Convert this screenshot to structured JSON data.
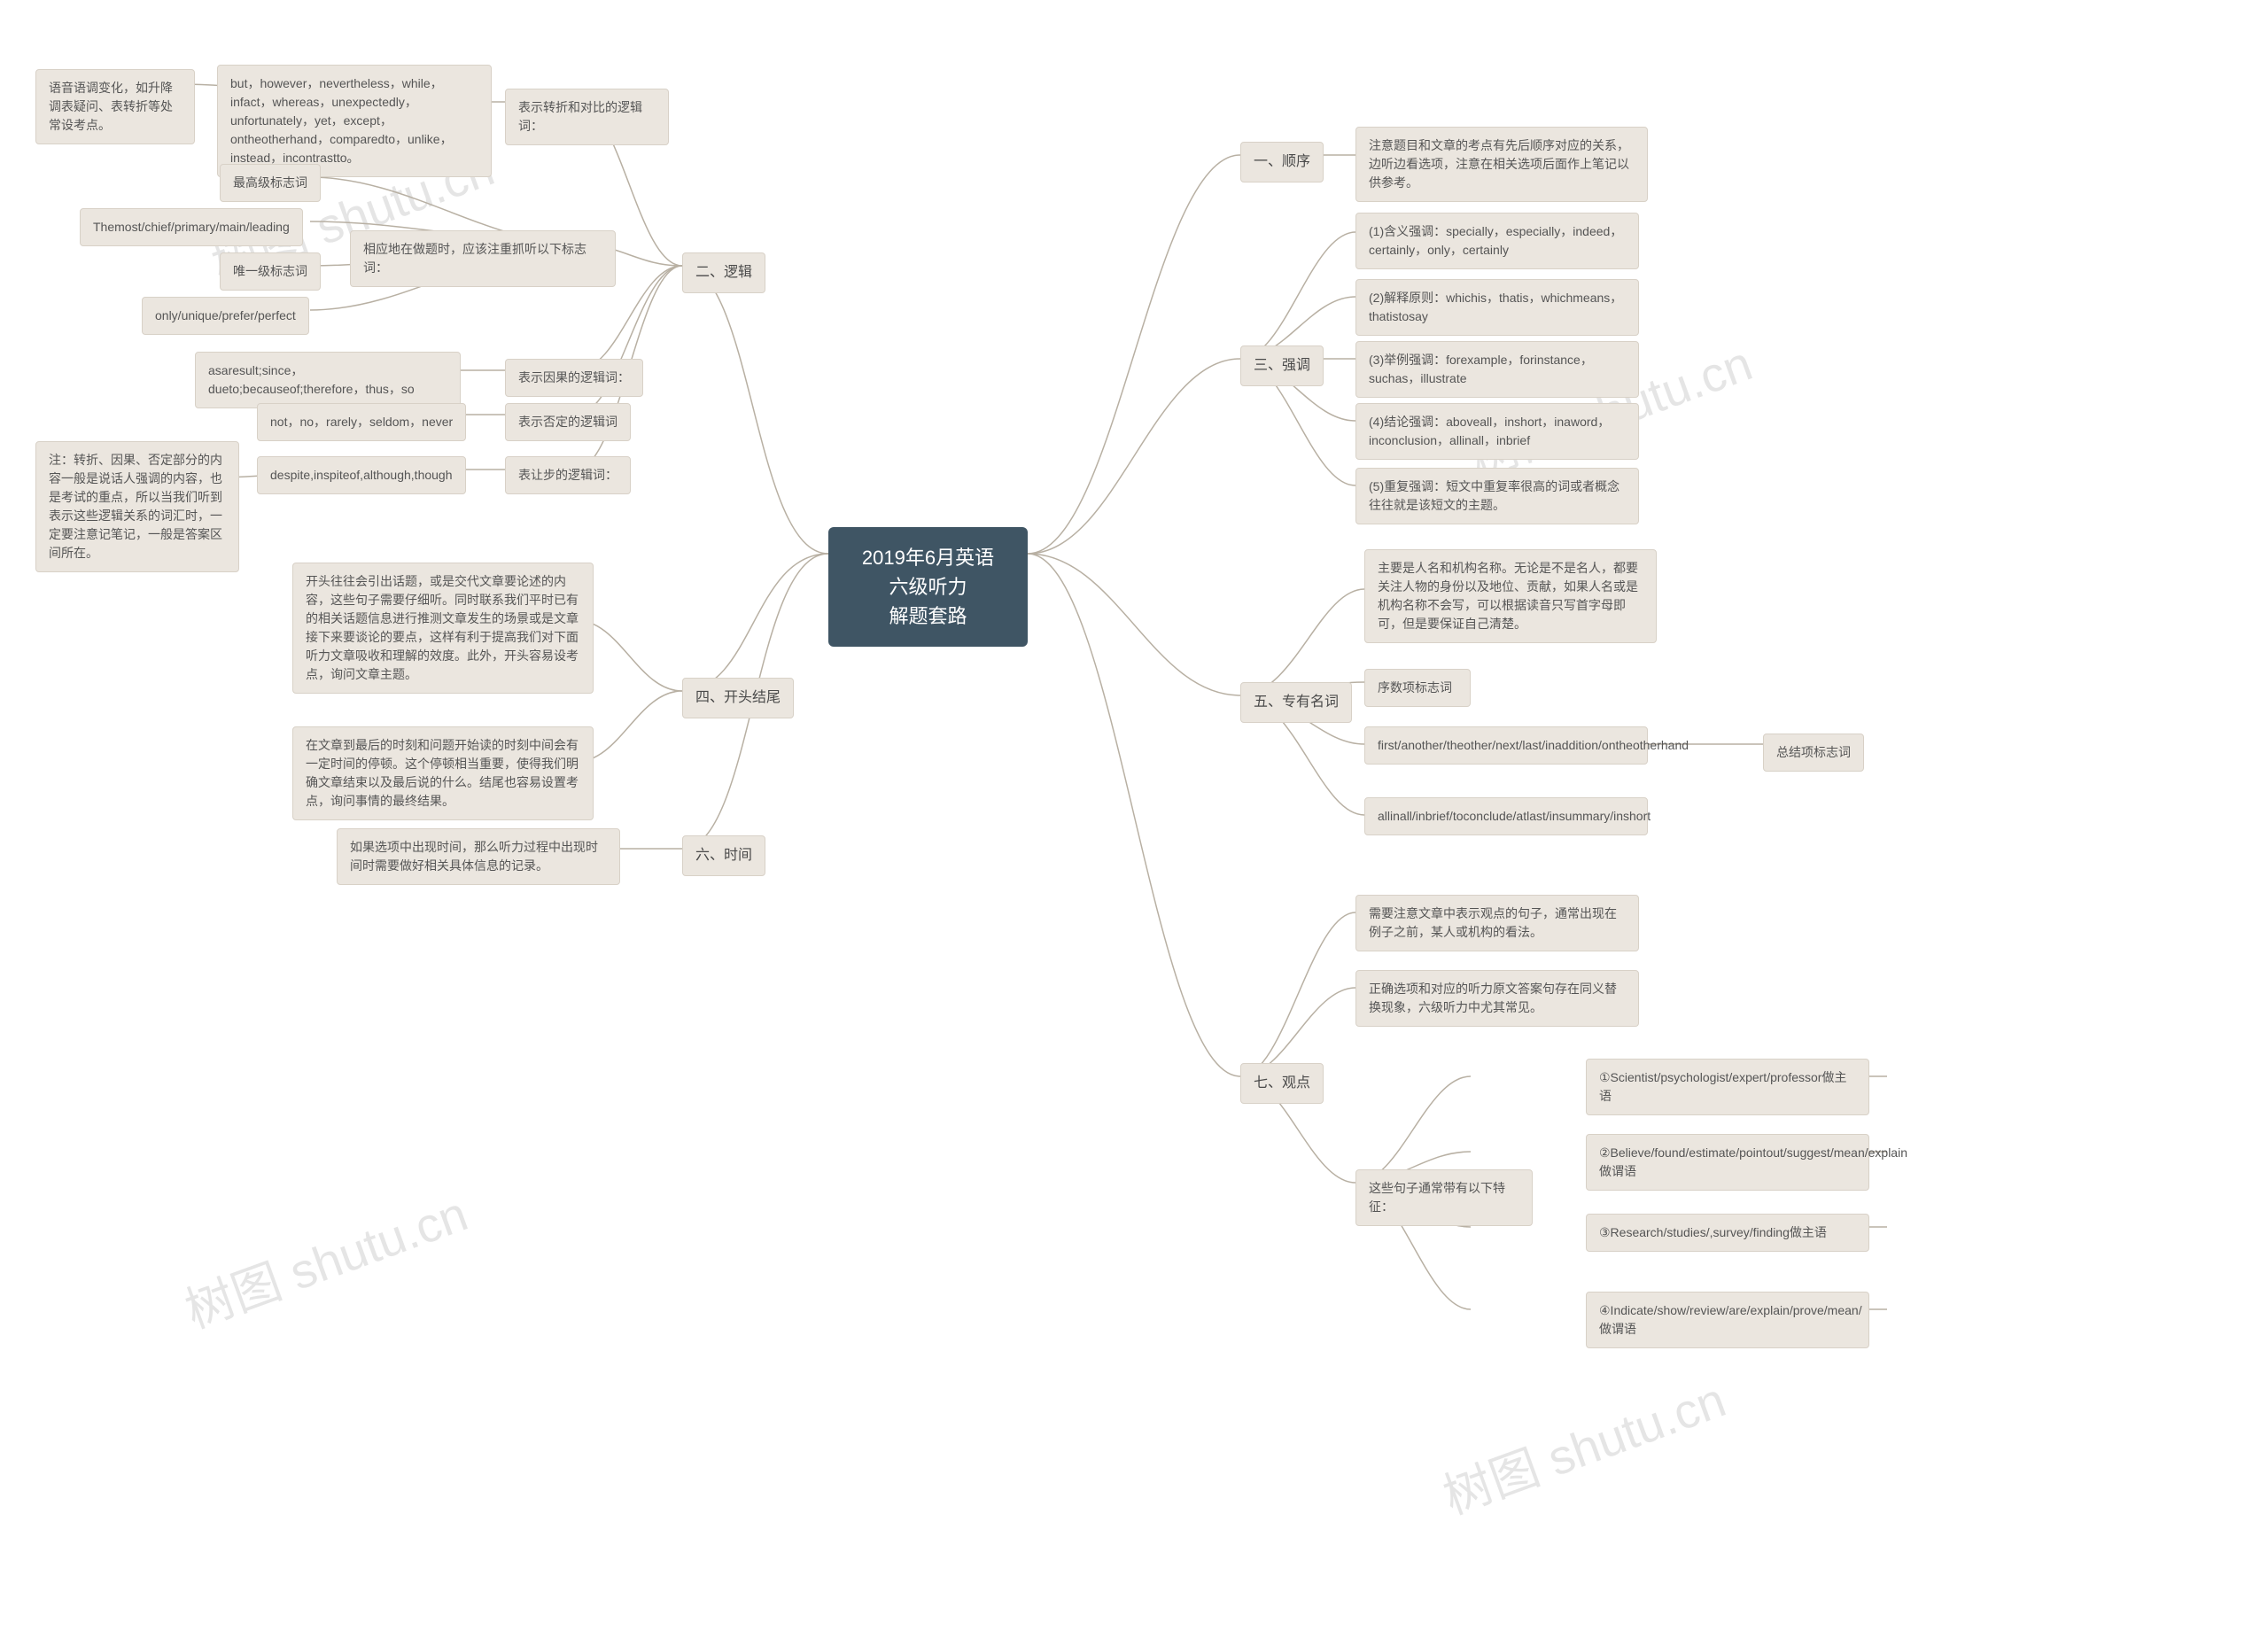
{
  "center": "2019年6月英语六级听力\n解题套路",
  "colors": {
    "center_bg": "#3f5564",
    "center_text": "#ffffff",
    "node_bg": "#ebe6df",
    "node_border": "#d8d1c7",
    "node_text": "#555555",
    "connector": "#b8b0a3",
    "watermark": "rgba(0,0,0,0.1)",
    "page_bg": "#ffffff"
  },
  "watermarks": [
    "树图 shutu.cn",
    "树图 shutu.cn",
    "树图 shutu.cn",
    "树图 shutu.cn"
  ],
  "branches": {
    "one": {
      "title": "一、顺序",
      "content": "注意题目和文章的考点有先后顺序对应的关系，边听边看选项，注意在相关选项后面作上笔记以供参考。"
    },
    "two": {
      "title": "二、逻辑",
      "a": {
        "label": "表示转折和对比的逻辑词：",
        "content": "but，however，nevertheless，while，infact，whereas，unexpectedly，unfortunately，yet，except，ontheotherhand，comparedto，unlike，instead，incontrastto。",
        "extra": "语音语调变化，如升降调表疑问、表转折等处常设考点。"
      },
      "b": {
        "label": "相应地在做题时，应该注重抓听以下标志词：",
        "b1": "最高级标志词",
        "b2": "Themost/chief/primary/main/leading",
        "b3": "唯一级标志词",
        "b4": "only/unique/prefer/perfect"
      },
      "c": {
        "label": "表示因果的逻辑词：",
        "content": "asaresult;since，dueto;becauseof;therefore，thus，so"
      },
      "d": {
        "label": "表示否定的逻辑词",
        "content": "not，no，rarely，seldom，never"
      },
      "e": {
        "label": "表让步的逻辑词：",
        "content": "despite,inspiteof,although,though",
        "extra": "注：转折、因果、否定部分的内容一般是说话人强调的内容，也是考试的重点，所以当我们听到表示这些逻辑关系的词汇时，一定要注意记笔记，一般是答案区间所在。"
      }
    },
    "three": {
      "title": "三、强调",
      "c1": "(1)含义强调：specially，especially，indeed，certainly，only，certainly",
      "c2": "(2)解释原则：whichis，thatis，whichmeans，thatistosay",
      "c3": "(3)举例强调：forexample，forinstance，suchas，illustrate",
      "c4": "(4)结论强调：aboveall，inshort，inaword，inconclusion，allinall，inbrief",
      "c5": "(5)重复强调：短文中重复率很高的词或者概念往往就是该短文的主题。"
    },
    "four": {
      "title": "四、开头结尾",
      "c1": "开头往往会引出话题，或是交代文章要论述的内容，这些句子需要仔细听。同时联系我们平时已有的相关话题信息进行推测文章发生的场景或是文章接下来要谈论的要点，这样有利于提高我们对下面听力文章吸收和理解的效度。此外，开头容易设考点，询问文章主题。",
      "c2": "在文章到最后的时刻和问题开始读的时刻中间会有一定时间的停顿。这个停顿相当重要，使得我们明确文章结束以及最后说的什么。结尾也容易设置考点，询问事情的最终结果。"
    },
    "five": {
      "title": "五、专有名词",
      "c1": "主要是人名和机构名称。无论是不是名人，都要关注人物的身份以及地位、贡献，如果人名或是机构名称不会写，可以根据读音只写首字母即可，但是要保证自己清楚。",
      "c2": "序数项标志词",
      "c3": "first/another/theother/next/last/inaddition/ontheotherhand",
      "c3_extra": "总结项标志词",
      "c4": "allinall/inbrief/toconclude/atlast/insummary/inshort"
    },
    "six": {
      "title": "六、时间",
      "content": "如果选项中出现时间，那么听力过程中出现时间时需要做好相关具体信息的记录。"
    },
    "seven": {
      "title": "七、观点",
      "c1": "需要注意文章中表示观点的句子，通常出现在例子之前，某人或机构的看法。",
      "c2": "正确选项和对应的听力原文答案句存在同义替换现象，六级听力中尤其常见。",
      "c3": {
        "label": "这些句子通常带有以下特征：",
        "i1": "①Scientist/psychologist/expert/professor做主语",
        "i2": "②Believe/found/estimate/pointout/suggest/mean/explain做谓语",
        "i3": "③Research/studies/,survey/finding做主语",
        "i4": "④Indicate/show/review/are/explain/prove/mean/做谓语"
      }
    }
  }
}
